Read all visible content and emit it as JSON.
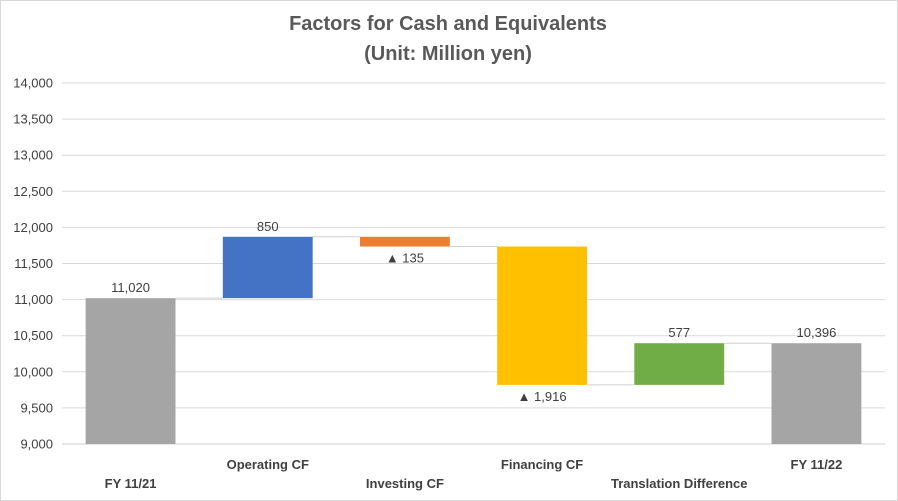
{
  "chart_data": {
    "type": "bar",
    "subtype": "waterfall",
    "title": "Factors for Cash and Equivalents",
    "subtitle": "(Unit: Million yen)",
    "xlabel": "",
    "ylabel": "",
    "ylim": [
      9000,
      14000
    ],
    "ytick_step": 500,
    "yticks": [
      "9,000",
      "9,500",
      "10,000",
      "10,500",
      "11,000",
      "11,500",
      "12,000",
      "12,500",
      "13,000",
      "13,500",
      "14,000"
    ],
    "grid": true,
    "legend": "none",
    "categories": [
      "FY 11/21",
      "Operating CF",
      "Investing CF",
      "Financing CF",
      "Translation Difference",
      "FY 11/22"
    ],
    "bars": [
      {
        "category": "FY 11/21",
        "kind": "total",
        "start": 0,
        "end": 11020,
        "label": "11,020",
        "color": "#a5a5a5"
      },
      {
        "category": "Operating CF",
        "kind": "increase",
        "start": 11020,
        "end": 11870,
        "label": "850",
        "color": "#4472c4"
      },
      {
        "category": "Investing CF",
        "kind": "decrease",
        "start": 11870,
        "end": 11735,
        "label": "▲ 135",
        "color": "#ed7d31"
      },
      {
        "category": "Financing CF",
        "kind": "decrease",
        "start": 11735,
        "end": 9819,
        "label": "▲ 1,916",
        "color": "#ffc000"
      },
      {
        "category": "Translation Difference",
        "kind": "increase",
        "start": 9819,
        "end": 10396,
        "label": "577",
        "color": "#70ad47"
      },
      {
        "category": "FY 11/22",
        "kind": "total",
        "start": 0,
        "end": 10396,
        "label": "10,396",
        "color": "#a5a5a5"
      }
    ]
  }
}
